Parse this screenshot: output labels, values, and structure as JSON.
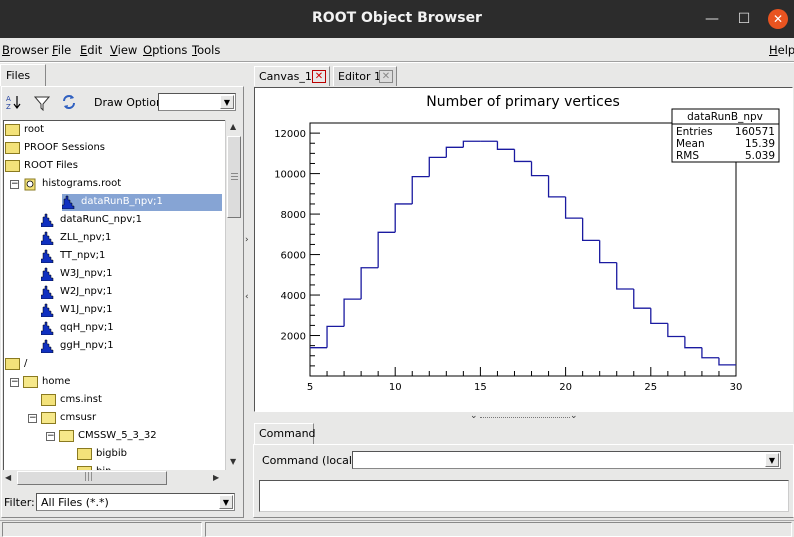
{
  "window": {
    "title": "ROOT Object Browser",
    "minimize_glyph": "—",
    "maximize_glyph": "☐",
    "close_glyph": "✕"
  },
  "menu": {
    "items": [
      {
        "label": "Browser",
        "mnemonic": "B",
        "rest": "rowser"
      },
      {
        "label": "File",
        "mnemonic": "F",
        "rest": "ile"
      },
      {
        "label": "Edit",
        "mnemonic": "E",
        "rest": "dit"
      },
      {
        "label": "View",
        "mnemonic": "V",
        "rest": "iew"
      },
      {
        "label": "Options",
        "mnemonic": "O",
        "rest": "ptions"
      },
      {
        "label": "Tools",
        "mnemonic": "T",
        "rest": "ools"
      }
    ],
    "help": {
      "label": "Help",
      "mnemonic": "H",
      "rest": "elp"
    }
  },
  "left_panel": {
    "tab_label": "Files",
    "draw_option_label": "Draw Option:",
    "draw_option_value": "",
    "filter_label": "Filter:",
    "filter_value": "All Files (*.*)",
    "tree": [
      {
        "label": "root",
        "icon": "folder-icon",
        "level": 0
      },
      {
        "label": "PROOF Sessions",
        "icon": "folder-icon",
        "level": 0
      },
      {
        "label": "ROOT Files",
        "icon": "folder-icon",
        "level": 0
      },
      {
        "label": "histograms.root",
        "icon": "root-file-icon",
        "level": 1,
        "expander": "−"
      },
      {
        "label": "dataRunB_npv;1",
        "icon": "histogram-icon",
        "level": 2,
        "selected": true
      },
      {
        "label": "dataRunC_npv;1",
        "icon": "histogram-icon",
        "level": 2
      },
      {
        "label": "ZLL_npv;1",
        "icon": "histogram-icon",
        "level": 2
      },
      {
        "label": "TT_npv;1",
        "icon": "histogram-icon",
        "level": 2
      },
      {
        "label": "W3J_npv;1",
        "icon": "histogram-icon",
        "level": 2
      },
      {
        "label": "W2J_npv;1",
        "icon": "histogram-icon",
        "level": 2
      },
      {
        "label": "W1J_npv;1",
        "icon": "histogram-icon",
        "level": 2
      },
      {
        "label": "qqH_npv;1",
        "icon": "histogram-icon",
        "level": 2
      },
      {
        "label": "ggH_npv;1",
        "icon": "histogram-icon",
        "level": 2
      },
      {
        "label": "/",
        "icon": "folder-icon",
        "level": 0
      },
      {
        "label": "home",
        "icon": "folder-open-icon",
        "level": 1,
        "expander": "−"
      },
      {
        "label": "cms.inst",
        "icon": "folder-icon",
        "level": 2
      },
      {
        "label": "cmsusr",
        "icon": "folder-open-icon",
        "level": 2,
        "expander": "−"
      },
      {
        "label": "CMSSW_5_3_32",
        "icon": "folder-open-icon",
        "level": 3,
        "expander": "−"
      },
      {
        "label": "bigbib",
        "icon": "folder-icon",
        "level": 4
      },
      {
        "label": "bin",
        "icon": "folder-icon",
        "level": 4
      }
    ],
    "scroll_glyph": "|||"
  },
  "tabs": [
    {
      "label": "Canvas_1",
      "close": "✕",
      "active": true
    },
    {
      "label": "Editor 1",
      "close": "✕",
      "active": false
    }
  ],
  "command": {
    "tab_label": "Command",
    "label": "Command (local):",
    "value": ""
  },
  "colors": {
    "histogram_line": "#1a1aa0",
    "selection": "#86a4d4",
    "close_accent": "#e95420"
  },
  "stats_box": {
    "name": "dataRunB_npv",
    "rows": [
      {
        "key": "Entries",
        "value": "160571"
      },
      {
        "key": "Mean",
        "value": "15.39"
      },
      {
        "key": "RMS",
        "value": "5.039"
      }
    ]
  },
  "chart_data": {
    "type": "histogram",
    "title": "Number of primary vertices",
    "xlabel": "",
    "ylabel": "",
    "xlim": [
      5,
      30
    ],
    "ylim": [
      0,
      12500
    ],
    "x_ticks": [
      5,
      10,
      15,
      20,
      25,
      30
    ],
    "y_ticks": [
      2000,
      4000,
      6000,
      8000,
      10000,
      12000
    ],
    "bin_width": 1,
    "bin_edges_start": 5,
    "values": [
      1400,
      2450,
      3800,
      5350,
      7100,
      8500,
      9850,
      10800,
      11300,
      11600,
      11600,
      11200,
      10600,
      9900,
      8850,
      7800,
      6700,
      5600,
      4300,
      3350,
      2600,
      1950,
      1400,
      900,
      550
    ],
    "grid": false
  }
}
